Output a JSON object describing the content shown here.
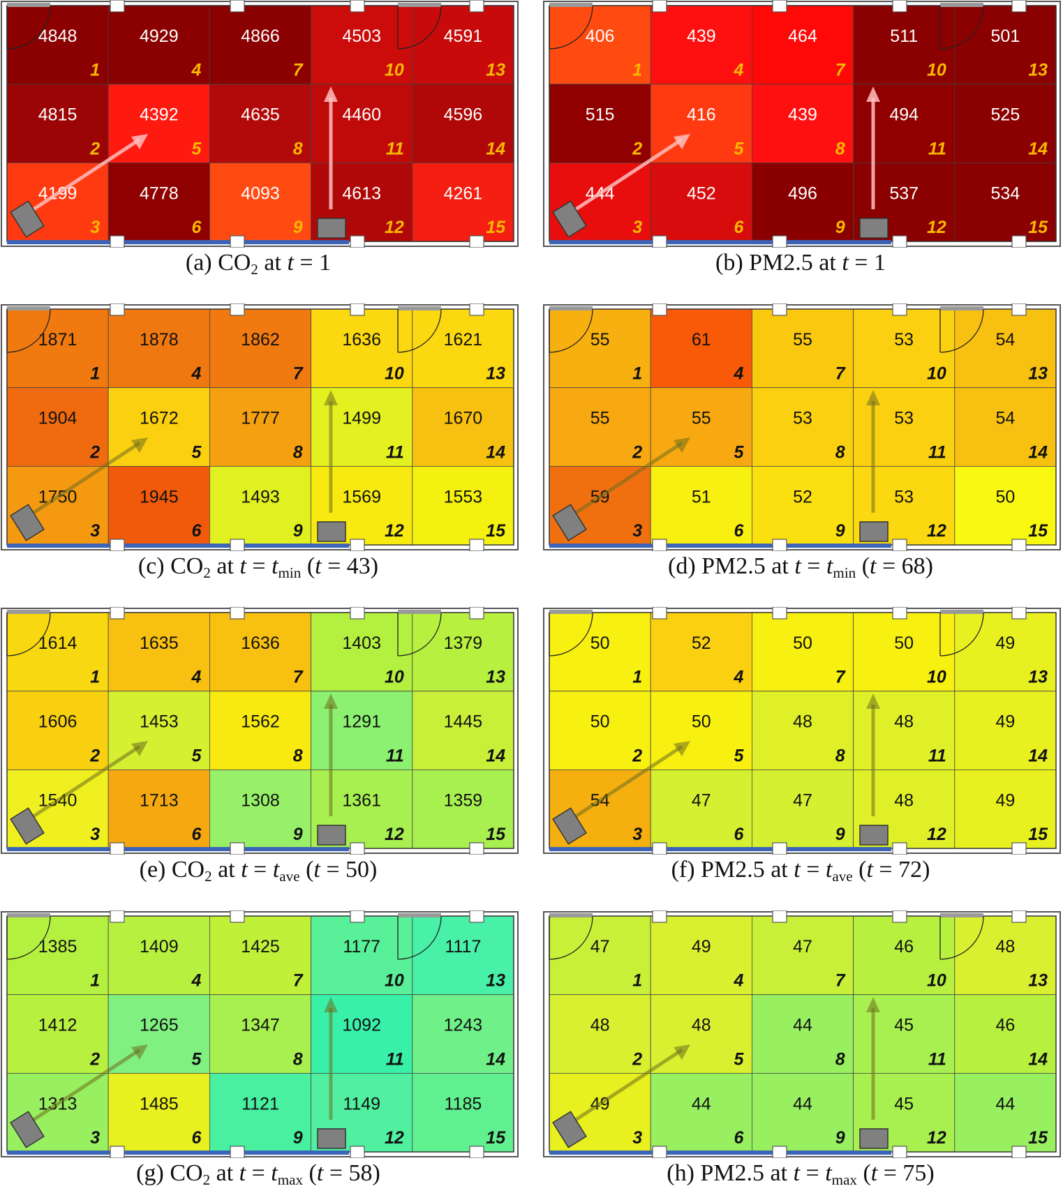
{
  "figure": {
    "panels": [
      {
        "id": "a",
        "caption": {
          "letter": "(a)",
          "pollutant": "CO",
          "pollutant_sub": "2",
          "at": "at",
          "t": "t",
          "eq": "=",
          "t_sub_base": "",
          "t_sub": "",
          "value": "1",
          "paren": ""
        },
        "values": [
          4848,
          4815,
          4199,
          4929,
          4392,
          4778,
          4866,
          4635,
          4093,
          4503,
          4460,
          4613,
          4591,
          4596,
          4261
        ],
        "colors": [
          "#8b0000",
          "#9c0506",
          "#ff3a10",
          "#8b0000",
          "#ff1a10",
          "#8f0000",
          "#8b0000",
          "#b20a0a",
          "#ff4a12",
          "#cc0b0b",
          "#c00a0a",
          "#b00808",
          "#c80a0a",
          "#b00808",
          "#f41e12"
        ],
        "dark_text": false
      },
      {
        "id": "b",
        "caption": {
          "letter": "(b)",
          "pollutant": "PM2.5",
          "pollutant_sub": "",
          "at": "at",
          "t": "t",
          "eq": "=",
          "t_sub_base": "",
          "t_sub": "",
          "value": "1",
          "paren": ""
        },
        "values": [
          406,
          515,
          444,
          439,
          416,
          452,
          464,
          439,
          496,
          511,
          494,
          537,
          501,
          525,
          534
        ],
        "colors": [
          "#ff4a10",
          "#900000",
          "#e80e0e",
          "#ff1010",
          "#ff3a10",
          "#d80c0c",
          "#ff0808",
          "#ff1010",
          "#8a0000",
          "#8b0000",
          "#900000",
          "#8b0000",
          "#8b0000",
          "#8b0000",
          "#8b0000"
        ],
        "dark_text": false
      },
      {
        "id": "c",
        "caption": {
          "letter": "(c)",
          "pollutant": "CO",
          "pollutant_sub": "2",
          "at": "at",
          "t": "t",
          "eq": "=",
          "t_sub_base": "t",
          "t_sub": "min",
          "value": "",
          "paren": "(t = 43)"
        },
        "values": [
          1871,
          1904,
          1750,
          1878,
          1672,
          1945,
          1862,
          1777,
          1493,
          1636,
          1499,
          1569,
          1621,
          1670,
          1553
        ],
        "colors": [
          "#f07a10",
          "#f06a10",
          "#f59a10",
          "#f07810",
          "#fbd010",
          "#f05a0a",
          "#f07a10",
          "#f5a010",
          "#e0f020",
          "#fbd810",
          "#e4f020",
          "#f8ea10",
          "#fbd810",
          "#f8c010",
          "#f4f010"
        ],
        "dark_text": true
      },
      {
        "id": "d",
        "caption": {
          "letter": "(d)",
          "pollutant": "PM2.5",
          "pollutant_sub": "",
          "at": "at",
          "t": "t",
          "eq": "=",
          "t_sub_base": "t",
          "t_sub": "min",
          "value": "",
          "paren": "(t = 68)"
        },
        "values": [
          55,
          55,
          59,
          61,
          55,
          51,
          55,
          53,
          52,
          53,
          53,
          53,
          54,
          54,
          50
        ],
        "colors": [
          "#f8b010",
          "#f8a810",
          "#f07010",
          "#f85a08",
          "#f8a810",
          "#f8f010",
          "#fbc810",
          "#fbd010",
          "#fbe010",
          "#fbd010",
          "#fbd010",
          "#fbd810",
          "#f8c010",
          "#f8c010",
          "#f8f810"
        ],
        "dark_text": true
      },
      {
        "id": "e",
        "caption": {
          "letter": "(e)",
          "pollutant": "CO",
          "pollutant_sub": "2",
          "at": "at",
          "t": "t",
          "eq": "=",
          "t_sub_base": "t",
          "t_sub": "ave",
          "value": "",
          "paren": "(t = 50)"
        },
        "values": [
          1614,
          1606,
          1540,
          1635,
          1453,
          1713,
          1636,
          1562,
          1308,
          1403,
          1291,
          1361,
          1379,
          1445,
          1359
        ],
        "colors": [
          "#f8d810",
          "#f8d010",
          "#f0f020",
          "#f8c010",
          "#d4f030",
          "#f5a810",
          "#f8c010",
          "#f8ea10",
          "#98f068",
          "#b4f040",
          "#8cf070",
          "#a8f050",
          "#b8f040",
          "#c8f038",
          "#a8f050"
        ],
        "dark_text": true
      },
      {
        "id": "f",
        "caption": {
          "letter": "(f)",
          "pollutant": "PM2.5",
          "pollutant_sub": "",
          "at": "at",
          "t": "t",
          "eq": "=",
          "t_sub_base": "t",
          "t_sub": "ave",
          "value": "",
          "paren": "(t = 72)"
        },
        "values": [
          50,
          50,
          54,
          52,
          50,
          47,
          50,
          48,
          47,
          50,
          48,
          48,
          49,
          49,
          49
        ],
        "colors": [
          "#f8f010",
          "#f8f010",
          "#f5b010",
          "#fbd010",
          "#f8f010",
          "#d4f030",
          "#f8f010",
          "#e0f028",
          "#d4f030",
          "#f8f010",
          "#e0f028",
          "#e0f028",
          "#e8f020",
          "#e8f020",
          "#e8f020"
        ],
        "dark_text": true
      },
      {
        "id": "g",
        "caption": {
          "letter": "(g)",
          "pollutant": "CO",
          "pollutant_sub": "2",
          "at": "at",
          "t": "t",
          "eq": "=",
          "t_sub_base": "t",
          "t_sub": "max",
          "value": "",
          "paren": "(t = 58)"
        },
        "values": [
          1385,
          1412,
          1313,
          1409,
          1265,
          1485,
          1425,
          1347,
          1121,
          1177,
          1092,
          1149,
          1117,
          1243,
          1185
        ],
        "colors": [
          "#b4f040",
          "#b8f040",
          "#98f060",
          "#b8f040",
          "#80f080",
          "#e8f020",
          "#c0f038",
          "#a8f050",
          "#48f0a0",
          "#58f098",
          "#38f0a8",
          "#50f0a0",
          "#48f0a8",
          "#70f088",
          "#60f090"
        ],
        "dark_text": true
      },
      {
        "id": "h",
        "caption": {
          "letter": "(h)",
          "pollutant": "PM2.5",
          "pollutant_sub": "",
          "at": "at",
          "t": "t",
          "eq": "=",
          "t_sub_base": "t",
          "t_sub": "max",
          "value": "",
          "paren": "(t = 75)"
        },
        "values": [
          47,
          48,
          49,
          49,
          48,
          44,
          47,
          44,
          44,
          46,
          45,
          45,
          48,
          46,
          44
        ],
        "colors": [
          "#c8f038",
          "#d8f030",
          "#e8f020",
          "#d8f030",
          "#d8f030",
          "#98f060",
          "#c8f038",
          "#98f060",
          "#98f060",
          "#b8f040",
          "#a8f050",
          "#a8f050",
          "#d8f030",
          "#b8f040",
          "#98f060"
        ],
        "dark_text": true
      }
    ]
  }
}
